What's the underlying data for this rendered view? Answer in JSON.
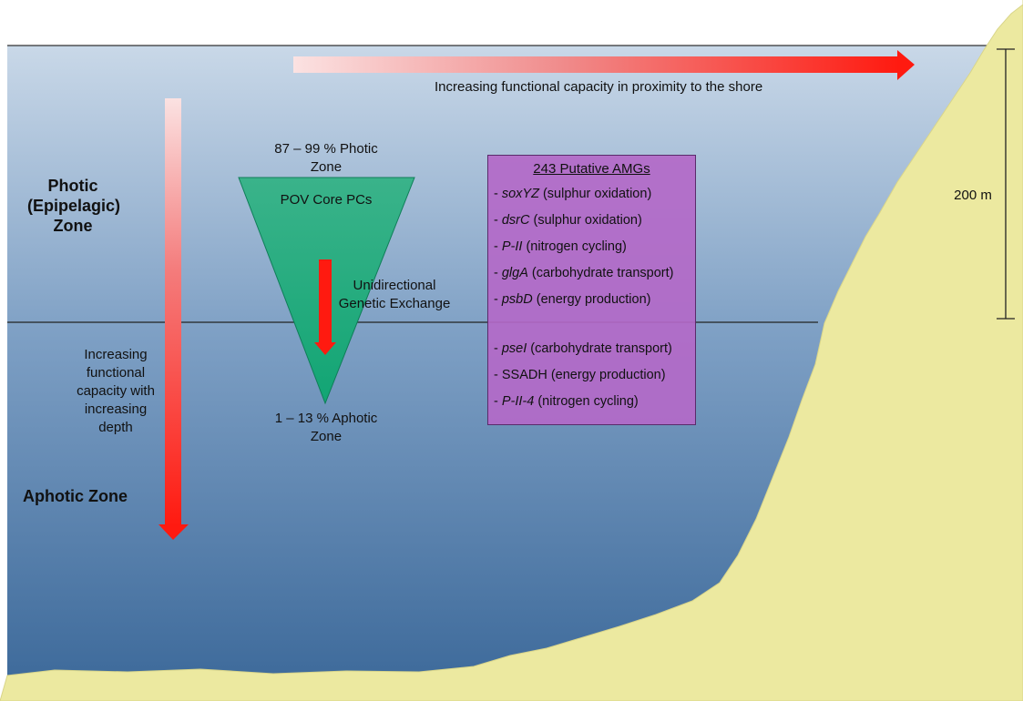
{
  "colors": {
    "water_top": "#c6d5e6",
    "water_bottom": "#3d6a9c",
    "shore": "#ece9a0",
    "arrow_red": "#ff1a10",
    "triangle_green": "#2eb27f",
    "amg_box": "#b369c8"
  },
  "arrows": {
    "horizontal_label": "Increasing functional capacity in proximity to the shore",
    "vertical_label": "Increasing\nfunctional\ncapacity with\nincreasing\ndepth"
  },
  "zones": {
    "photic_label": "Photic\n(Epipelagic)\nZone",
    "aphotic_label": "Aphotic Zone",
    "depth_scale_label": "200 m"
  },
  "triangle": {
    "top_label": "87 – 99 % Photic\nZone",
    "core_label": "POV Core PCs",
    "exchange_label": "Unidirectional\nGenetic Exchange",
    "bottom_label": "1 – 13 % Aphotic\nZone"
  },
  "amg_box": {
    "title": "243 Putative AMGs",
    "photic_items": [
      {
        "prefix": "- ",
        "gene": "soxYZ",
        "desc": " (sulphur oxidation)"
      },
      {
        "prefix": "- ",
        "gene": "dsrC",
        "desc": " (sulphur oxidation)"
      },
      {
        "prefix": "- ",
        "gene": "P-II",
        "desc": " (nitrogen cycling)"
      },
      {
        "prefix": "- ",
        "gene": "glgA",
        "desc": " (carbohydrate transport)"
      },
      {
        "prefix": "- ",
        "gene": "psbD",
        "desc": " (energy production)"
      }
    ],
    "aphotic_items": [
      {
        "prefix": "- ",
        "gene": "pseI",
        "desc": " (carbohydrate transport)"
      },
      {
        "prefix": "- ",
        "gene": "",
        "desc": "SSADH (energy production)"
      },
      {
        "prefix": "- ",
        "gene": "P-II-4",
        "desc": " (nitrogen cycling)"
      }
    ]
  }
}
